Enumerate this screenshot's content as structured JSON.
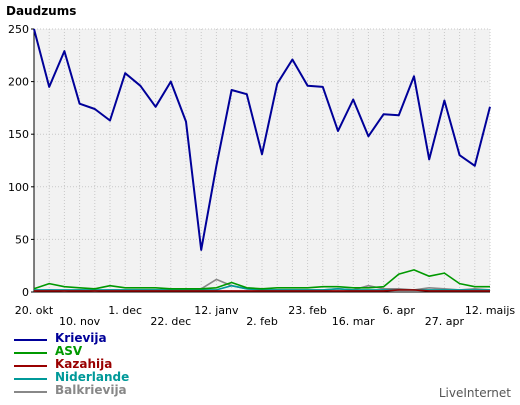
{
  "chart_data": {
    "type": "line",
    "title": "",
    "ylabel": "Daudzums",
    "xlabel": "",
    "ylim": [
      0,
      250
    ],
    "yticks": [
      0,
      50,
      100,
      150,
      200,
      250
    ],
    "x_tick_labels_row1": [
      "20. okt",
      "1. dec",
      "12. janv",
      "23. feb",
      "6. apr",
      "12. maijs"
    ],
    "x_tick_labels_row2": [
      "10. nov",
      "22. dec",
      "2. feb",
      "16. mar",
      "27. apr"
    ],
    "grid": true,
    "legend_position": "bottom-left",
    "series": [
      {
        "name": "Krievija",
        "color": "#000099",
        "values": [
          250,
          195,
          229,
          179,
          174,
          163,
          208,
          196,
          176,
          200,
          162,
          40,
          120,
          192,
          188,
          131,
          198,
          221,
          196,
          195,
          153,
          183,
          148,
          169,
          168,
          205,
          126,
          182,
          130,
          120,
          176
        ]
      },
      {
        "name": "ASV",
        "color": "#009900",
        "values": [
          3,
          8,
          5,
          4,
          3,
          6,
          4,
          4,
          4,
          3,
          3,
          3,
          4,
          9,
          4,
          3,
          4,
          4,
          4,
          5,
          5,
          4,
          4,
          5,
          17,
          21,
          15,
          18,
          8,
          5,
          5
        ]
      },
      {
        "name": "Kazahija",
        "color": "#990000",
        "values": [
          1,
          1,
          1,
          1,
          1,
          1,
          1,
          1,
          1,
          1,
          1,
          1,
          1,
          1,
          1,
          1,
          1,
          1,
          1,
          1,
          1,
          1,
          1,
          1,
          2,
          2,
          1,
          1,
          1,
          1,
          1
        ]
      },
      {
        "name": "Niderlande",
        "color": "#009999",
        "values": [
          2,
          2,
          2,
          2,
          2,
          2,
          2,
          2,
          2,
          2,
          2,
          2,
          2,
          6,
          3,
          2,
          2,
          2,
          2,
          2,
          3,
          2,
          2,
          2,
          2,
          2,
          2,
          2,
          2,
          2,
          2
        ]
      },
      {
        "name": "Balkrievija",
        "color": "#888888",
        "values": [
          1,
          2,
          1,
          2,
          1,
          2,
          2,
          2,
          2,
          2,
          3,
          3,
          12,
          6,
          3,
          2,
          2,
          2,
          2,
          2,
          3,
          2,
          6,
          3,
          3,
          2,
          4,
          3,
          2,
          3,
          2
        ]
      }
    ]
  },
  "brand": "LiveInternet"
}
